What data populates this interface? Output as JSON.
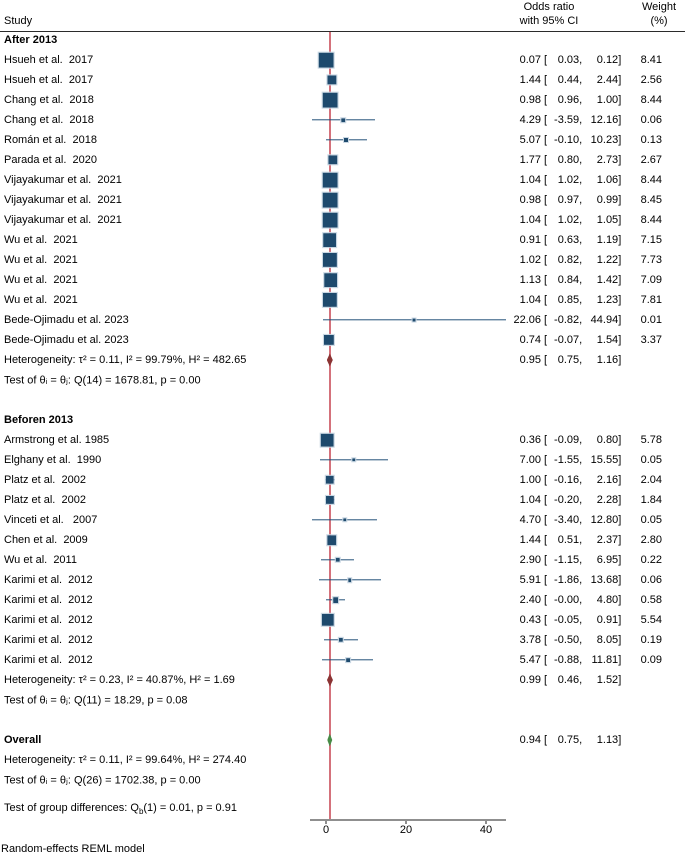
{
  "header": {
    "study": "Study",
    "or_line1": "Odds ratio",
    "or_line2": "with 95% CI",
    "weight_line1": "Weight",
    "weight_line2": "(%)"
  },
  "footer": {
    "model_note": "Random-effects REML model"
  },
  "colors": {
    "marker": "#1e4a6d",
    "marker_edge": "#c9d7e3",
    "ci_line": "#24517a",
    "reference_line": "#d4717b",
    "subgroup_diamond": "#8b3434",
    "overall_diamond": "#478c47",
    "axis": "#8f8f8f",
    "text": "#000000"
  },
  "chart_data": {
    "type": "forest",
    "effect_measure": "Odds ratio with 95% CI",
    "reference_line_value": 1,
    "x_ticks": [
      "0",
      "20",
      "40"
    ],
    "x_axis_range": [
      -4,
      45
    ],
    "groups": [
      {
        "name": "After 2013",
        "studies": [
          {
            "label": "Hsueh et al.  2017",
            "est": "0.07",
            "lo": "0.03",
            "hi": "0.12",
            "weight": "8.41"
          },
          {
            "label": "Hsueh et al.  2017",
            "est": "1.44",
            "lo": "0.44",
            "hi": "2.44",
            "weight": "2.56"
          },
          {
            "label": "Chang et al.  2018",
            "est": "0.98",
            "lo": "0.96",
            "hi": "1.00",
            "weight": "8.44"
          },
          {
            "label": "Chang et al.  2018",
            "est": "4.29",
            "lo": "-3.59",
            "hi": "12.16",
            "weight": "0.06"
          },
          {
            "label": "Román et al.  2018",
            "est": "5.07",
            "lo": "-0.10",
            "hi": "10.23",
            "weight": "0.13"
          },
          {
            "label": "Parada et al.  2020",
            "est": "1.77",
            "lo": "0.80",
            "hi": "2.73",
            "weight": "2.67"
          },
          {
            "label": "Vijayakumar et al.  2021",
            "est": "1.04",
            "lo": "1.02",
            "hi": "1.06",
            "weight": "8.44"
          },
          {
            "label": "Vijayakumar et al.  2021",
            "est": "0.98",
            "lo": "0.97",
            "hi": "0.99",
            "weight": "8.45"
          },
          {
            "label": "Vijayakumar et al.  2021",
            "est": "1.04",
            "lo": "1.02",
            "hi": "1.05",
            "weight": "8.44"
          },
          {
            "label": "Wu et al.  2021",
            "est": "0.91",
            "lo": "0.63",
            "hi": "1.19",
            "weight": "7.15"
          },
          {
            "label": "Wu et al.  2021",
            "est": "1.02",
            "lo": "0.82",
            "hi": "1.22",
            "weight": "7.73"
          },
          {
            "label": "Wu et al.  2021",
            "est": "1.13",
            "lo": "0.84",
            "hi": "1.42",
            "weight": "7.09"
          },
          {
            "label": "Wu et al.  2021",
            "est": "1.04",
            "lo": "0.85",
            "hi": "1.23",
            "weight": "7.81"
          },
          {
            "label": "Bede-Ojimadu et al. 2023",
            "est": "22.06",
            "lo": "-0.82",
            "hi": "44.94",
            "weight": "0.01"
          },
          {
            "label": "Bede-Ojimadu et al. 2023",
            "est": "0.74",
            "lo": "-0.07",
            "hi": "1.54",
            "weight": "3.37"
          }
        ],
        "summary": {
          "est": "0.95",
          "lo": "0.75",
          "hi": "1.16"
        },
        "heterogeneity": "Heterogeneity: τ² = 0.11, I² = 99.79%, H² = 482.65",
        "test": "Test of θᵢ = θⱼ: Q(14) = 1678.81, p = 0.00"
      },
      {
        "name": "Beforen 2013",
        "studies": [
          {
            "label": "Armstrong et al. 1985",
            "est": "0.36",
            "lo": "-0.09",
            "hi": "0.80",
            "weight": "5.78"
          },
          {
            "label": "Elghany et al.  1990",
            "est": "7.00",
            "lo": "-1.55",
            "hi": "15.55",
            "weight": "0.05"
          },
          {
            "label": "Platz et al.  2002",
            "est": "1.00",
            "lo": "-0.16",
            "hi": "2.16",
            "weight": "2.04"
          },
          {
            "label": "Platz et al.  2002",
            "est": "1.04",
            "lo": "-0.20",
            "hi": "2.28",
            "weight": "1.84"
          },
          {
            "label": "Vinceti et al.   2007",
            "est": "4.70",
            "lo": "-3.40",
            "hi": "12.80",
            "weight": "0.05"
          },
          {
            "label": "Chen et al.  2009",
            "est": "1.44",
            "lo": "0.51",
            "hi": "2.37",
            "weight": "2.80"
          },
          {
            "label": "Wu et al.  2011",
            "est": "2.90",
            "lo": "-1.15",
            "hi": "6.95",
            "weight": "0.22"
          },
          {
            "label": "Karimi et al.  2012",
            "est": "5.91",
            "lo": "-1.86",
            "hi": "13.68",
            "weight": "0.06"
          },
          {
            "label": "Karimi et al.  2012",
            "est": "2.40",
            "lo": "-0.00",
            "hi": "4.80",
            "weight": "0.58"
          },
          {
            "label": "Karimi et al.  2012",
            "est": "0.43",
            "lo": "-0.05",
            "hi": "0.91",
            "weight": "5.54"
          },
          {
            "label": "Karimi et al.  2012",
            "est": "3.78",
            "lo": "-0.50",
            "hi": "8.05",
            "weight": "0.19"
          },
          {
            "label": "Karimi et al.  2012",
            "est": "5.47",
            "lo": "-0.88",
            "hi": "11.81",
            "weight": "0.09"
          }
        ],
        "summary": {
          "est": "0.99",
          "lo": "0.46",
          "hi": "1.52"
        },
        "heterogeneity": "Heterogeneity: τ² = 0.23, I² = 40.87%, H² = 1.69",
        "test": "Test of θᵢ = θⱼ: Q(11) = 18.29, p = 0.08"
      }
    ],
    "overall": {
      "label": "Overall",
      "summary": {
        "est": "0.94",
        "lo": "0.75",
        "hi": "1.13"
      },
      "heterogeneity": "Heterogeneity: τ² = 0.11, I² = 99.64%, H² = 274.40",
      "test": "Test of θᵢ = θⱼ: Q(26) = 1702.38, p = 0.00",
      "group_difference": "Test of group differences: Q_b(1) = 0.01, p = 0.91"
    }
  }
}
